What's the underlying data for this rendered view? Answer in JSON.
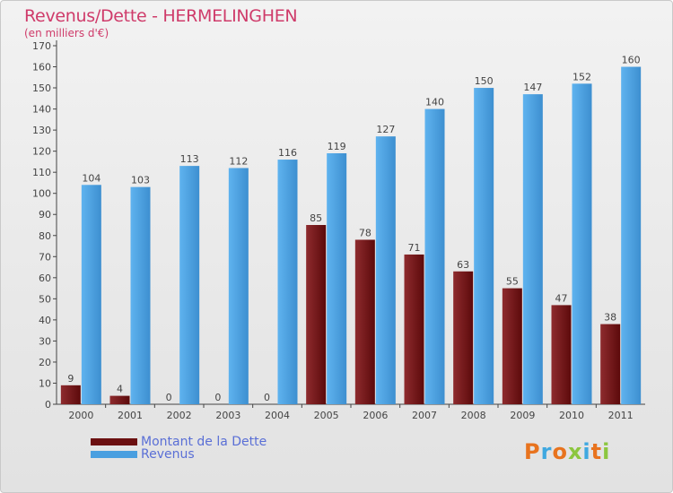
{
  "title": "Revenus/Dette - HERMELINGHEN",
  "subtitle": "(en milliers d'€)",
  "logo": {
    "text": "Proxiti",
    "colors": [
      "#e8731e",
      "#3fa8e0",
      "#e8731e",
      "#8cc63f",
      "#3fa8e0",
      "#e8731e",
      "#8cc63f"
    ]
  },
  "legend": [
    {
      "label": "Montant de la Dette",
      "color": "#6b0f10"
    },
    {
      "label": "Revenus",
      "color": "#4a9fe0"
    }
  ],
  "chart_data": {
    "type": "bar",
    "categories": [
      "2000",
      "2001",
      "2002",
      "2003",
      "2004",
      "2005",
      "2006",
      "2007",
      "2008",
      "2009",
      "2010",
      "2011"
    ],
    "series": [
      {
        "name": "Montant de la Dette",
        "values": [
          9,
          4,
          0,
          0,
          0,
          85,
          78,
          71,
          63,
          55,
          47,
          38
        ],
        "color": "#6b0f10"
      },
      {
        "name": "Revenus",
        "values": [
          104,
          103,
          113,
          112,
          116,
          119,
          127,
          140,
          150,
          147,
          152,
          160
        ],
        "color": "#4a9fe0"
      }
    ],
    "ylim": [
      0,
      170
    ],
    "yticks": [
      0,
      10,
      20,
      30,
      40,
      50,
      60,
      70,
      80,
      90,
      100,
      110,
      120,
      130,
      140,
      150,
      160,
      170
    ],
    "grid": false,
    "legend_position": "bottom-left"
  }
}
